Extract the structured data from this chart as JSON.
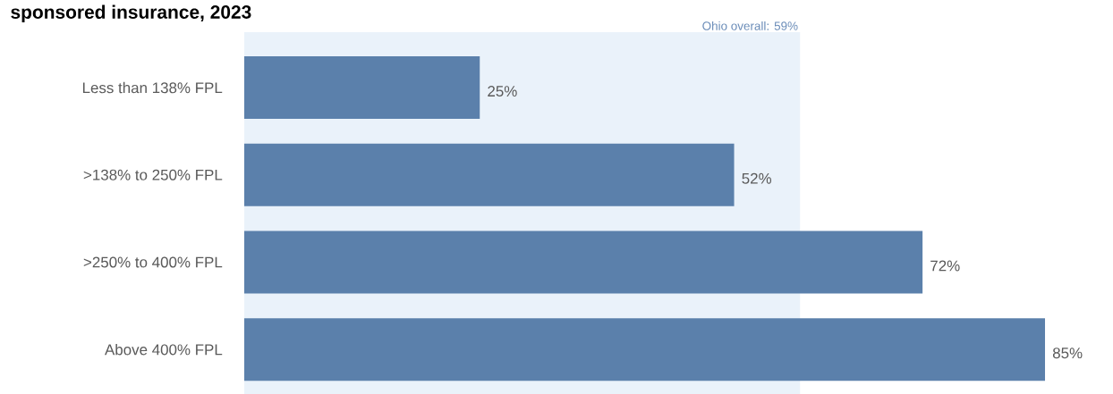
{
  "chart_data": {
    "type": "bar",
    "orientation": "horizontal",
    "title": "sponsored insurance, 2023",
    "categories": [
      "Less than 138% FPL",
      ">138% to 250% FPL",
      ">250% to 400% FPL",
      "Above 400% FPL"
    ],
    "values": [
      25,
      52,
      72,
      85
    ],
    "value_labels": [
      "25%",
      "52%",
      "72%",
      "85%"
    ],
    "color": "#5b80ab",
    "bands": [
      {
        "axis": "x",
        "from": 0,
        "to": 59,
        "label": "Ohio overall: 59%",
        "color": "#eaf2fa"
      }
    ]
  }
}
